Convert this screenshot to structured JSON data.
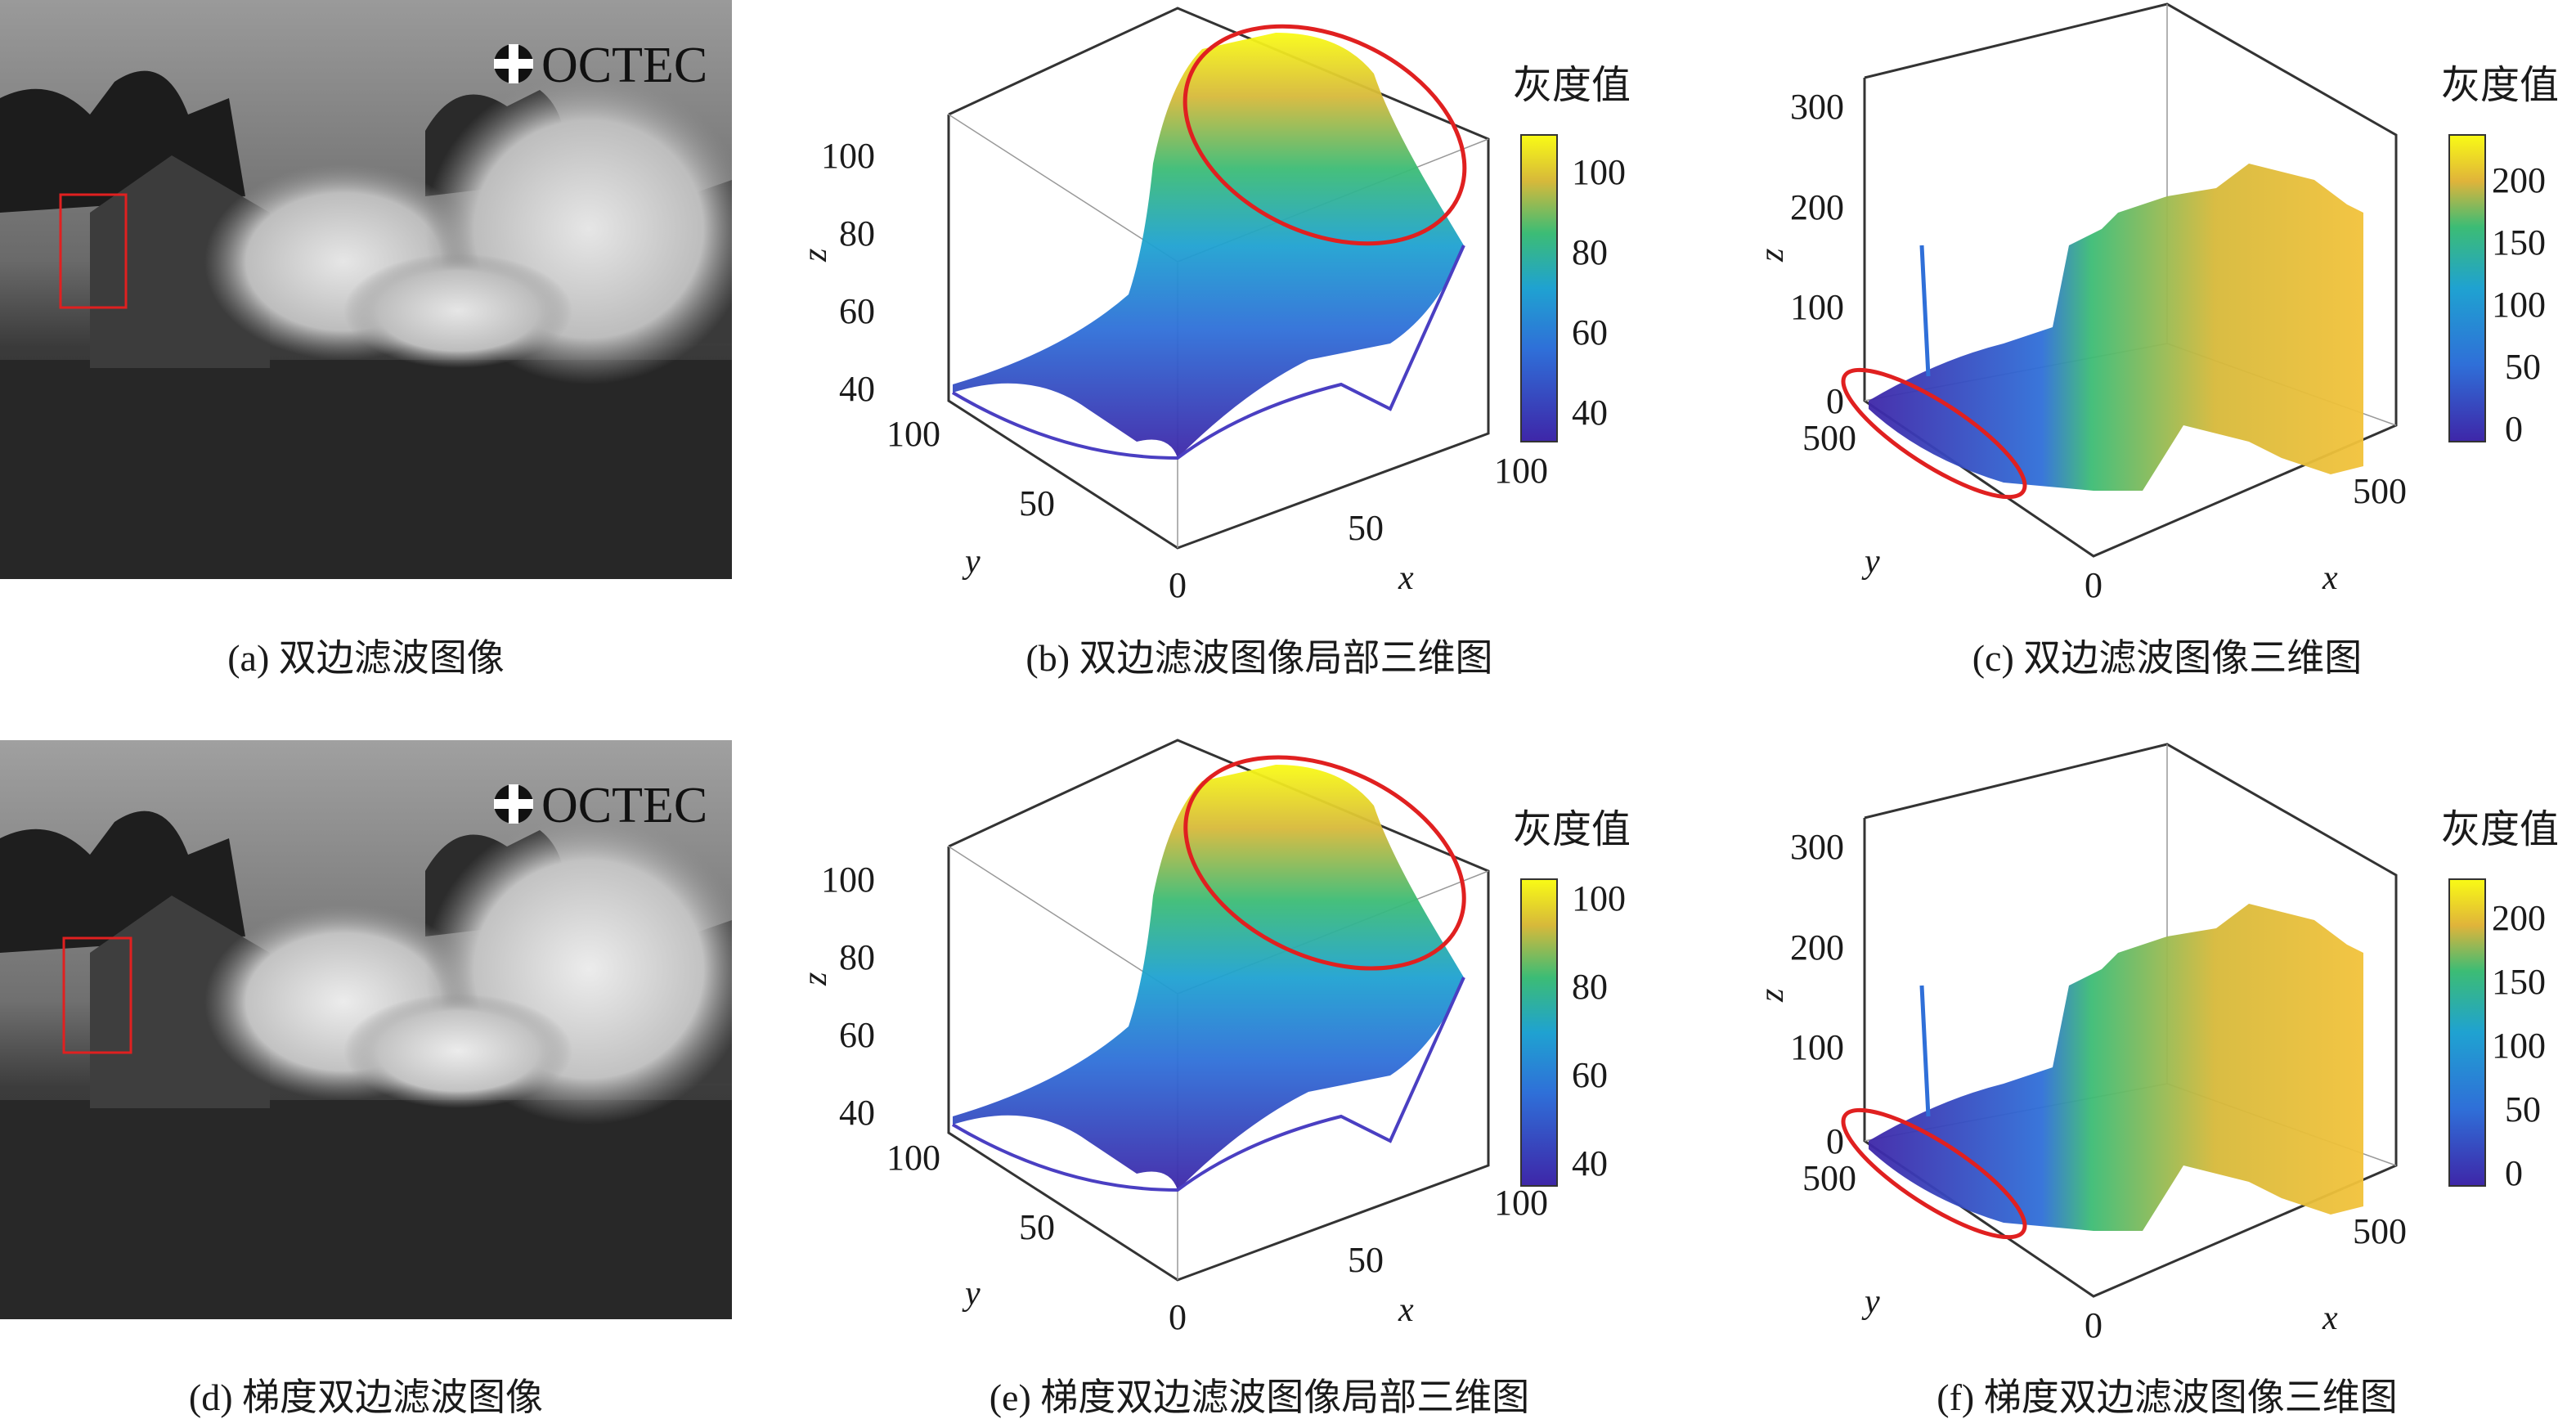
{
  "panels": [
    {
      "id": "a",
      "caption": "(a) 双边滤波图像",
      "logo": "OCTEC"
    },
    {
      "id": "b",
      "caption": "(b) 双边滤波图像局部三维图",
      "zticks": [
        "40",
        "60",
        "80",
        "100"
      ],
      "yticks": [
        "100",
        "50"
      ],
      "xticks": [
        "0",
        "50",
        "100"
      ],
      "xlabel": "x",
      "ylabel": "y",
      "zlabel": "z",
      "cbar_title": "灰度值",
      "cbar_ticks": [
        "40",
        "60",
        "80",
        "100"
      ]
    },
    {
      "id": "c",
      "caption": "(c) 双边滤波图像三维图",
      "zticks": [
        "0",
        "100",
        "200",
        "300"
      ],
      "yticks": [
        "500"
      ],
      "xticks": [
        "0",
        "500"
      ],
      "xlabel": "x",
      "ylabel": "y",
      "zlabel": "z",
      "cbar_title": "灰度值",
      "cbar_ticks": [
        "0",
        "50",
        "100",
        "150",
        "200"
      ]
    },
    {
      "id": "d",
      "caption": "(d) 梯度双边滤波图像",
      "logo": "OCTEC"
    },
    {
      "id": "e",
      "caption": "(e) 梯度双边滤波图像局部三维图",
      "zticks": [
        "40",
        "60",
        "80",
        "100"
      ],
      "yticks": [
        "100",
        "50"
      ],
      "xticks": [
        "0",
        "50",
        "100"
      ],
      "xlabel": "x",
      "ylabel": "y",
      "zlabel": "z",
      "cbar_title": "灰度值",
      "cbar_ticks": [
        "40",
        "60",
        "80",
        "100"
      ]
    },
    {
      "id": "f",
      "caption": "(f) 梯度双边滤波图像三维图",
      "zticks": [
        "0",
        "100",
        "200",
        "300"
      ],
      "yticks": [
        "500"
      ],
      "xticks": [
        "0",
        "500"
      ],
      "xlabel": "x",
      "ylabel": "y",
      "zlabel": "z",
      "cbar_title": "灰度值",
      "cbar_ticks": [
        "0",
        "50",
        "100",
        "150",
        "200"
      ]
    }
  ],
  "colors": {
    "parula_low": "#3e26a8",
    "parula_mid": "#1fa2d1",
    "parula_green": "#3cbc75",
    "parula_high": "#f9fb15",
    "highlight": "#e02020"
  }
}
